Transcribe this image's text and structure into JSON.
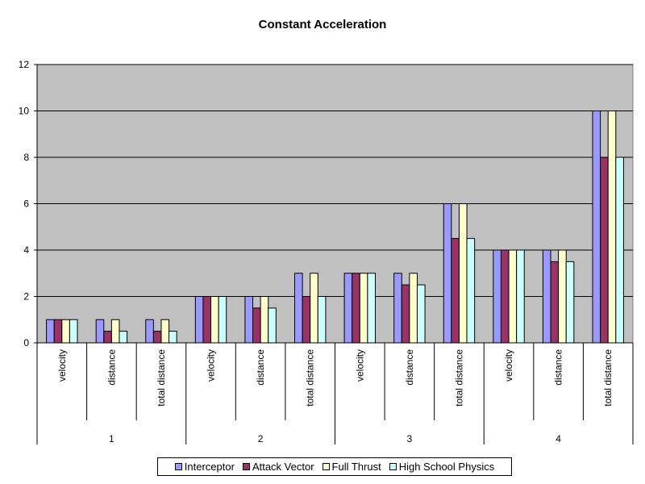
{
  "chart_data": {
    "type": "bar",
    "title": "Constant Acceleration",
    "xlabel": "",
    "ylabel": "",
    "ylim": [
      0,
      12
    ],
    "yticks": [
      0,
      2,
      4,
      6,
      8,
      10,
      12
    ],
    "grid": true,
    "legend_position": "bottom",
    "groups": [
      "1",
      "2",
      "3",
      "4"
    ],
    "categories": [
      "velocity",
      "distance",
      "total distance",
      "velocity",
      "distance",
      "total distance",
      "velocity",
      "distance",
      "total distance",
      "velocity",
      "distance",
      "total distance"
    ],
    "series": [
      {
        "name": "Interceptor",
        "color": "#9999ff",
        "values": [
          1,
          1,
          1,
          2,
          2,
          3,
          3,
          3,
          6,
          4,
          4,
          10
        ]
      },
      {
        "name": "Attack Vector",
        "color": "#993366",
        "values": [
          1,
          0.5,
          0.5,
          2,
          1.5,
          2,
          3,
          2.5,
          4.5,
          4,
          3.5,
          8
        ]
      },
      {
        "name": "Full Thrust",
        "color": "#ffffcc",
        "values": [
          1,
          1,
          1,
          2,
          2,
          3,
          3,
          3,
          6,
          4,
          4,
          10
        ]
      },
      {
        "name": "High School Physics",
        "color": "#ccffff",
        "values": [
          1,
          0.5,
          0.5,
          2,
          1.5,
          2,
          3,
          2.5,
          4.5,
          4,
          3.5,
          8
        ]
      }
    ]
  },
  "colors": {
    "plot_background": "#c0c0c0"
  }
}
